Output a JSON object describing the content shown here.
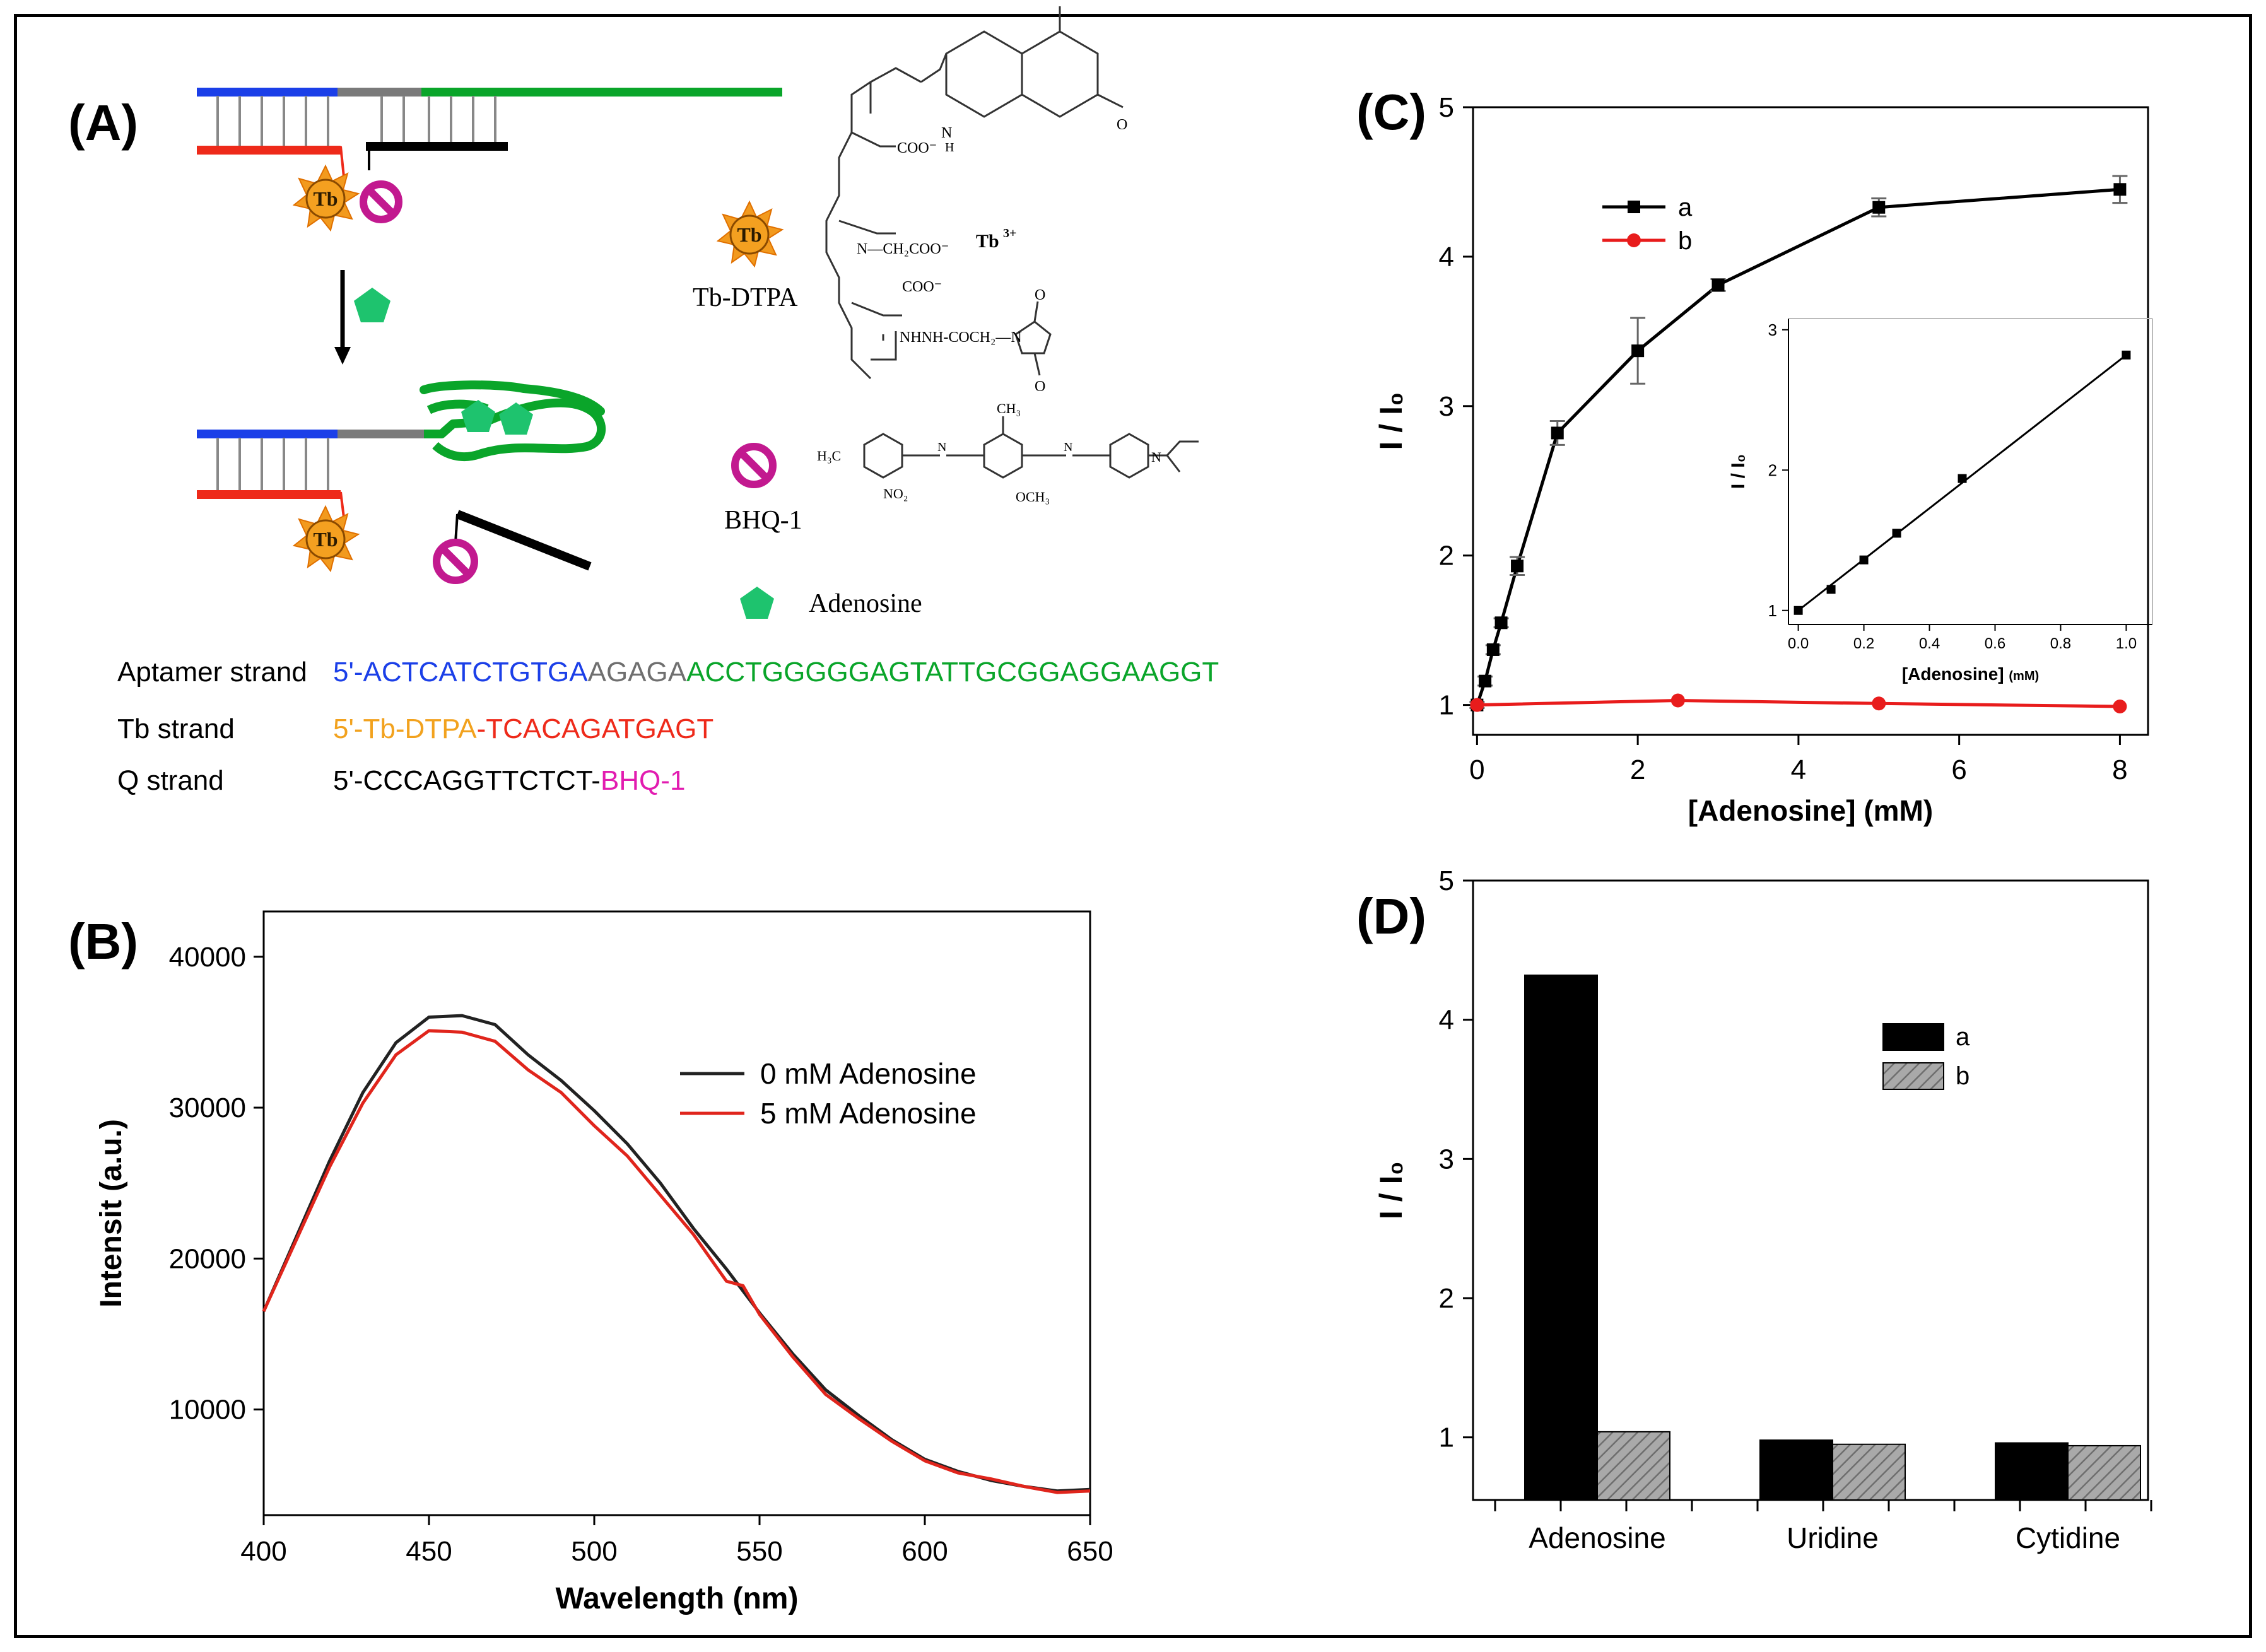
{
  "panels": {
    "a": "(A)",
    "b": "(B)",
    "c": "(C)",
    "d": "(D)"
  },
  "scheme": {
    "tb_label": "Tb",
    "tb_dtpa_label": "Tb-DTPA",
    "tb3_label": "Tb",
    "tb3_sup": "3+",
    "bhq_label": "BHQ-1",
    "adenosine_label": "Adenosine",
    "chem_coo1": "COO⁻",
    "chem_ch2coo": "N—CH₂COO⁻",
    "chem_coo2": "COO⁻",
    "chem_nhnh": "NHNH-COCH₂—N",
    "chem_h": "H",
    "chem_n_h": "N",
    "chem_h3c": "H₃C",
    "chem_no2": "NO₂",
    "chem_och3": "OCH₃",
    "chem_ch3": "CH₃",
    "chem_o": "O",
    "chem_n": "N",
    "colors": {
      "blue": "#1b3fe8",
      "gray": "#7a7a7a",
      "green": "#0aa52a",
      "red": "#ee2a1a",
      "black": "#000000",
      "tb": "#f29a1e",
      "bhq": "#c2198f",
      "pent": "#1ec36e"
    }
  },
  "sequences": {
    "aptamer_label": "Aptamer strand",
    "aptamer_blue": "5'-ACTCATCTGTGA",
    "aptamer_gray": "AGAGA",
    "aptamer_green": "ACCTGGGGGAGTATTGCGGAGGAAGGT",
    "tb_label": "Tb strand",
    "tb_orange": "5'-Tb-DTPA",
    "tb_red": "-TCACAGATGAGT",
    "q_label": "Q strand",
    "q_black": "5'-CCCAGGTTCTCT-",
    "q_pink": "BHQ-1"
  },
  "chart_data": [
    {
      "id": "B",
      "type": "line",
      "xlabel": "Wavelength (nm)",
      "ylabel": "Intensit (a.u.)",
      "xlim": [
        400,
        650
      ],
      "ylim": [
        3000,
        43000
      ],
      "xticks": [
        400,
        450,
        500,
        550,
        600,
        650
      ],
      "yticks": [
        10000,
        20000,
        30000,
        40000
      ],
      "series": [
        {
          "name": "0 mM Adenosine",
          "color": "#222222",
          "x": [
            400,
            410,
            420,
            430,
            440,
            450,
            460,
            470,
            480,
            490,
            500,
            510,
            520,
            530,
            540,
            550,
            560,
            570,
            580,
            590,
            600,
            610,
            620,
            630,
            640,
            650
          ],
          "y": [
            16500,
            21500,
            26500,
            31000,
            34300,
            36000,
            36100,
            35500,
            33500,
            31800,
            29800,
            27600,
            25000,
            22000,
            19300,
            16400,
            13700,
            11300,
            9600,
            8000,
            6700,
            5900,
            5300,
            4900,
            4600,
            4700
          ]
        },
        {
          "name": "5 mM Adenosine",
          "color": "#e0251c",
          "x": [
            400,
            410,
            420,
            430,
            440,
            450,
            460,
            470,
            480,
            490,
            500,
            510,
            520,
            530,
            540,
            545,
            550,
            560,
            570,
            580,
            590,
            600,
            610,
            620,
            630,
            640,
            650
          ],
          "y": [
            16500,
            21300,
            26100,
            30300,
            33500,
            35100,
            35000,
            34400,
            32500,
            31000,
            28800,
            26800,
            24200,
            21600,
            18500,
            18200,
            16300,
            13500,
            11000,
            9400,
            7900,
            6600,
            5800,
            5400,
            4900,
            4500,
            4600
          ]
        }
      ],
      "legend": "top-right"
    },
    {
      "id": "C",
      "type": "line",
      "xlabel": "[Adenosine] (mM)",
      "ylabel": "I / I₀",
      "xlim": [
        0,
        8.4
      ],
      "ylim": [
        0.8,
        5
      ],
      "xticks": [
        0,
        2,
        4,
        6,
        8
      ],
      "yticks": [
        1,
        2,
        3,
        4,
        5
      ],
      "series": [
        {
          "name": "a",
          "color": "#000000",
          "marker": "square",
          "x": [
            0,
            0.1,
            0.2,
            0.3,
            0.5,
            1,
            2,
            3,
            5,
            8
          ],
          "y": [
            1.0,
            1.16,
            1.37,
            1.55,
            1.93,
            2.82,
            3.37,
            3.81,
            4.33,
            4.45
          ],
          "err": [
            0.02,
            0.03,
            0.03,
            0.03,
            0.06,
            0.08,
            0.22,
            0.04,
            0.06,
            0.09
          ]
        },
        {
          "name": "b",
          "color": "#e81c1c",
          "marker": "circle",
          "x": [
            0,
            2.5,
            5,
            8
          ],
          "y": [
            1.0,
            1.03,
            1.01,
            0.99
          ]
        }
      ],
      "legend": "top-left",
      "inset": {
        "type": "scatter",
        "xlabel": "[Adenosine]",
        "xlabel_unit": "(mM)",
        "ylabel": "I / I₀",
        "xlim": [
          -0.03,
          1.08
        ],
        "ylim": [
          0.9,
          3.08
        ],
        "xticks": [
          0.0,
          0.2,
          0.4,
          0.6,
          0.8,
          1.0
        ],
        "xtick_labels": [
          "0.0",
          "0.2",
          "0.4",
          "0.6",
          "0.8",
          "1.0"
        ],
        "yticks": [
          1,
          2,
          3
        ],
        "x": [
          0,
          0.1,
          0.2,
          0.3,
          0.5,
          1.0
        ],
        "y": [
          1.0,
          1.15,
          1.36,
          1.55,
          1.94,
          2.82
        ],
        "fit": [
          [
            0,
            1.0
          ],
          [
            1.0,
            2.82
          ]
        ]
      }
    },
    {
      "id": "D",
      "type": "bar",
      "ylabel": "I / I₀",
      "ylim": [
        0.55,
        5
      ],
      "yticks": [
        1,
        2,
        3,
        4,
        5
      ],
      "categories": [
        "Adenosine",
        "Uridine",
        "Cytidine"
      ],
      "series": [
        {
          "name": "a",
          "color": "#000000",
          "values": [
            4.32,
            0.98,
            0.96
          ]
        },
        {
          "name": "b",
          "color": "#9a9a9a",
          "values": [
            1.04,
            0.95,
            0.94
          ]
        }
      ],
      "legend": "top-right"
    }
  ]
}
